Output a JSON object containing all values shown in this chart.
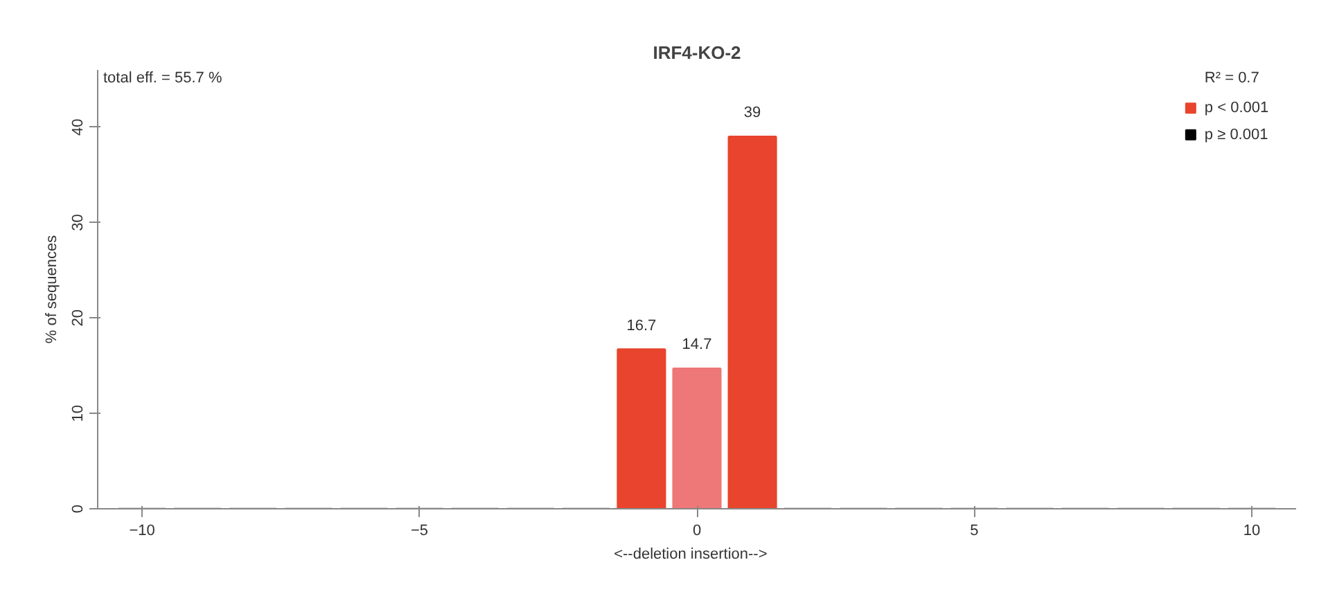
{
  "chart_data": {
    "type": "bar",
    "title": "IRF4-KO-2",
    "xlabel": "<--deletion    insertion-->",
    "ylabel": "% of sequences",
    "legend_title": "R² = 0.7",
    "annotations": [
      "total eff. = 55.7 %"
    ],
    "x": [
      -10,
      -9,
      -8,
      -7,
      -6,
      -5,
      -4,
      -3,
      -2,
      -1,
      0,
      1,
      2,
      3,
      4,
      5,
      6,
      7,
      8,
      9,
      10
    ],
    "series": [
      {
        "name": "p < 0.001",
        "color": "#e8442e",
        "values": [
          0,
          0,
          0,
          0,
          0,
          0,
          0,
          0,
          0,
          16.7,
          14.7,
          39,
          0,
          0,
          0,
          0,
          0,
          0,
          0,
          0,
          0
        ],
        "colors": [
          "#a0a0a0",
          "#a0a0a0",
          "#a0a0a0",
          "#a0a0a0",
          "#a0a0a0",
          "#a0a0a0",
          "#a0a0a0",
          "#a0a0a0",
          "#a0a0a0",
          "#e8442e",
          "#ee7777",
          "#e8442e",
          "#a0a0a0",
          "#a0a0a0",
          "#a0a0a0",
          "#a0a0a0",
          "#a0a0a0",
          "#a0a0a0",
          "#a0a0a0",
          "#a0a0a0",
          "#a0a0a0"
        ],
        "value_labels": [
          null,
          null,
          null,
          null,
          null,
          null,
          null,
          null,
          null,
          "16.7",
          "14.7",
          "39",
          null,
          null,
          null,
          null,
          null,
          null,
          null,
          null,
          null
        ]
      },
      {
        "name": "p ≥ 0.001",
        "color": "#000000",
        "values": [
          null,
          null,
          null,
          null,
          null,
          null,
          null,
          null,
          null,
          null,
          null,
          null,
          null,
          null,
          null,
          null,
          null,
          null,
          null,
          null,
          null
        ]
      }
    ],
    "xlim": [
      -10.8,
      10.8
    ],
    "xticks": [
      -10,
      -5,
      0,
      5,
      10
    ],
    "ylim": [
      0,
      46
    ],
    "yticks": [
      0,
      10,
      20,
      30,
      40
    ],
    "grid": false,
    "legend": "top right"
  }
}
